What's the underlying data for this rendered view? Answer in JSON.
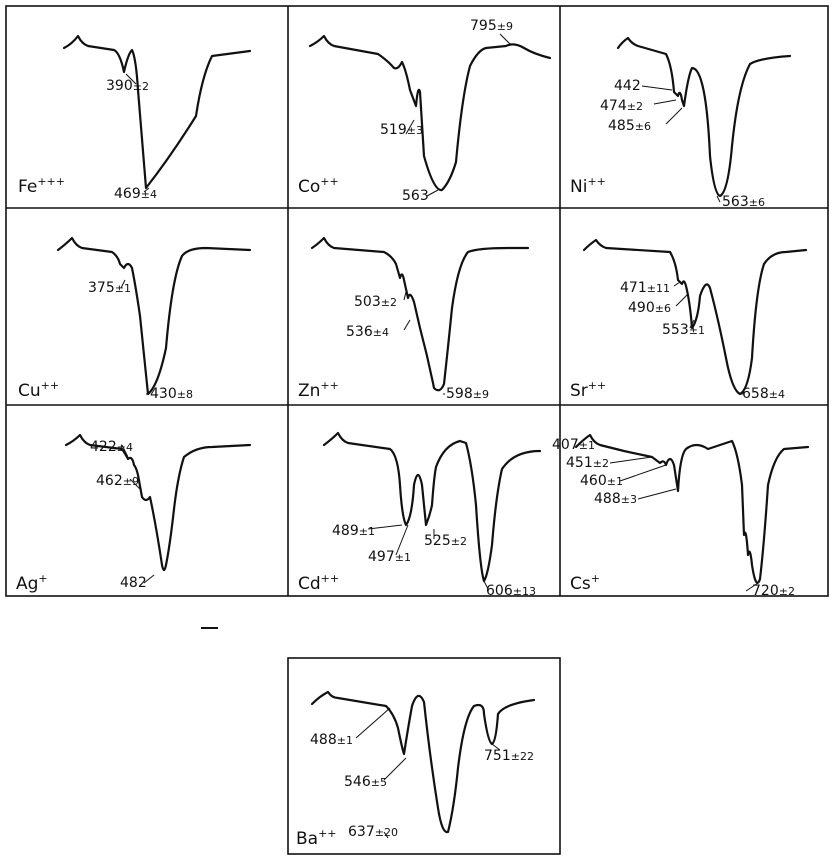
{
  "chart_data": {
    "type": "line",
    "panels": [
      {
        "ion": "Fe",
        "charge": "+++",
        "peaks": [
          {
            "value": "390",
            "error": "2"
          },
          {
            "value": "469",
            "error": "4"
          }
        ]
      },
      {
        "ion": "Co",
        "charge": "++",
        "peaks": [
          {
            "value": "795",
            "error": "9"
          },
          {
            "value": "519",
            "error": "3"
          },
          {
            "value": "563",
            "error": ""
          }
        ]
      },
      {
        "ion": "Ni",
        "charge": "++",
        "peaks": [
          {
            "value": "442",
            "error": ""
          },
          {
            "value": "474",
            "error": "2"
          },
          {
            "value": "485",
            "error": "6"
          },
          {
            "value": "563",
            "error": "6"
          }
        ]
      },
      {
        "ion": "Cu",
        "charge": "++",
        "peaks": [
          {
            "value": "375",
            "error": "1"
          },
          {
            "value": "430",
            "error": "8"
          }
        ]
      },
      {
        "ion": "Zn",
        "charge": "++",
        "peaks": [
          {
            "value": "503",
            "error": "2"
          },
          {
            "value": "536",
            "error": "4"
          },
          {
            "value": "598",
            "error": "9"
          }
        ]
      },
      {
        "ion": "Sr",
        "charge": "++",
        "peaks": [
          {
            "value": "471",
            "error": "11"
          },
          {
            "value": "490",
            "error": "6"
          },
          {
            "value": "553",
            "error": "1"
          },
          {
            "value": "658",
            "error": "4"
          }
        ]
      },
      {
        "ion": "Ag",
        "charge": "+",
        "peaks": [
          {
            "value": "422",
            "error": "4"
          },
          {
            "value": "462",
            "error": "9"
          },
          {
            "value": "482",
            "error": ""
          }
        ]
      },
      {
        "ion": "Cd",
        "charge": "++",
        "peaks": [
          {
            "value": "489",
            "error": "1"
          },
          {
            "value": "497",
            "error": "1"
          },
          {
            "value": "525",
            "error": "2"
          },
          {
            "value": "606",
            "error": "13"
          }
        ]
      },
      {
        "ion": "Cs",
        "charge": "+",
        "peaks": [
          {
            "value": "407",
            "error": "1"
          },
          {
            "value": "451",
            "error": "2"
          },
          {
            "value": "460",
            "error": "1"
          },
          {
            "value": "488",
            "error": "3"
          },
          {
            "value": "720",
            "error": "2"
          }
        ]
      },
      {
        "ion": "Ba",
        "charge": "++",
        "peaks": [
          {
            "value": "488",
            "error": "1"
          },
          {
            "value": "546",
            "error": "5"
          },
          {
            "value": "751",
            "error": "22"
          },
          {
            "value": "637",
            "error": "20"
          }
        ]
      }
    ],
    "grid": false,
    "legend": "none"
  }
}
